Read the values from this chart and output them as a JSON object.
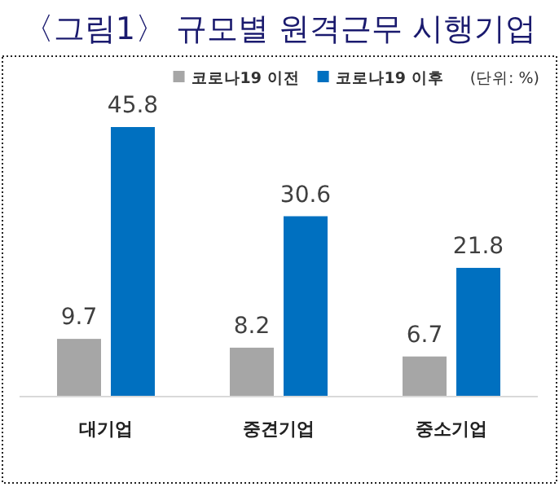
{
  "chart_data": {
    "type": "bar",
    "title": "〈그림1〉 규모별 원격근무 시행기업",
    "categories": [
      "대기업",
      "중견기업",
      "중소기업"
    ],
    "series": [
      {
        "name": "코로나19 이전",
        "color": "#a6a6a6",
        "values": [
          9.7,
          8.2,
          6.7
        ]
      },
      {
        "name": "코로나19 이후",
        "color": "#0070c0",
        "values": [
          45.8,
          30.6,
          21.8
        ]
      }
    ],
    "annotations": [
      "(단위: %)"
    ],
    "data_labels": true,
    "legend": "top right"
  }
}
